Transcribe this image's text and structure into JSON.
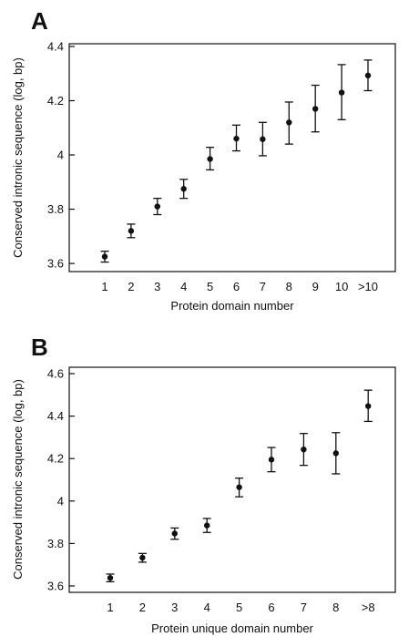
{
  "chart_data": [
    {
      "type": "scatter",
      "panel_label": "A",
      "xlabel": "Protein domain number",
      "ylabel": "Conserved intronic sequence (log, bp)",
      "categories": [
        "1",
        "2",
        "3",
        "4",
        "5",
        "6",
        "7",
        "8",
        "9",
        "10",
        ">10"
      ],
      "values": [
        3.625,
        3.72,
        3.81,
        3.875,
        3.985,
        4.06,
        4.058,
        4.12,
        4.17,
        4.23,
        4.293
      ],
      "error_low": [
        3.605,
        3.695,
        3.78,
        3.84,
        3.945,
        4.015,
        3.997,
        4.04,
        4.085,
        4.13,
        4.237
      ],
      "error_high": [
        3.645,
        3.745,
        3.84,
        3.91,
        4.028,
        4.11,
        4.12,
        4.195,
        4.257,
        4.333,
        4.35
      ],
      "ylim": [
        3.57,
        4.41
      ],
      "yticks": [
        3.6,
        3.8,
        4.0,
        4.2,
        4.4
      ],
      "ytick_labels": [
        "3.6",
        "3.8",
        "4",
        "4.2",
        "4.4"
      ],
      "grid": false,
      "legend": "none",
      "point_color": "#111111"
    },
    {
      "type": "scatter",
      "panel_label": "B",
      "xlabel": "Protein unique domain number",
      "ylabel": "Conserved intronic sequence (log, bp)",
      "categories": [
        "1",
        "2",
        "3",
        "4",
        "5",
        "6",
        "7",
        "8",
        ">8"
      ],
      "values": [
        3.638,
        3.733,
        3.847,
        3.885,
        4.065,
        4.195,
        4.243,
        4.225,
        4.447
      ],
      "error_low": [
        3.62,
        3.712,
        3.82,
        3.852,
        4.02,
        4.138,
        4.168,
        4.128,
        4.375
      ],
      "error_high": [
        3.656,
        3.753,
        3.873,
        3.918,
        4.108,
        4.252,
        4.318,
        4.322,
        4.522
      ],
      "ylim": [
        3.57,
        4.63
      ],
      "yticks": [
        3.6,
        3.8,
        4.0,
        4.2,
        4.4,
        4.6
      ],
      "ytick_labels": [
        "3.6",
        "3.8",
        "4",
        "4.2",
        "4.4",
        "4.6"
      ],
      "grid": false,
      "legend": "none",
      "point_color": "#111111"
    }
  ]
}
